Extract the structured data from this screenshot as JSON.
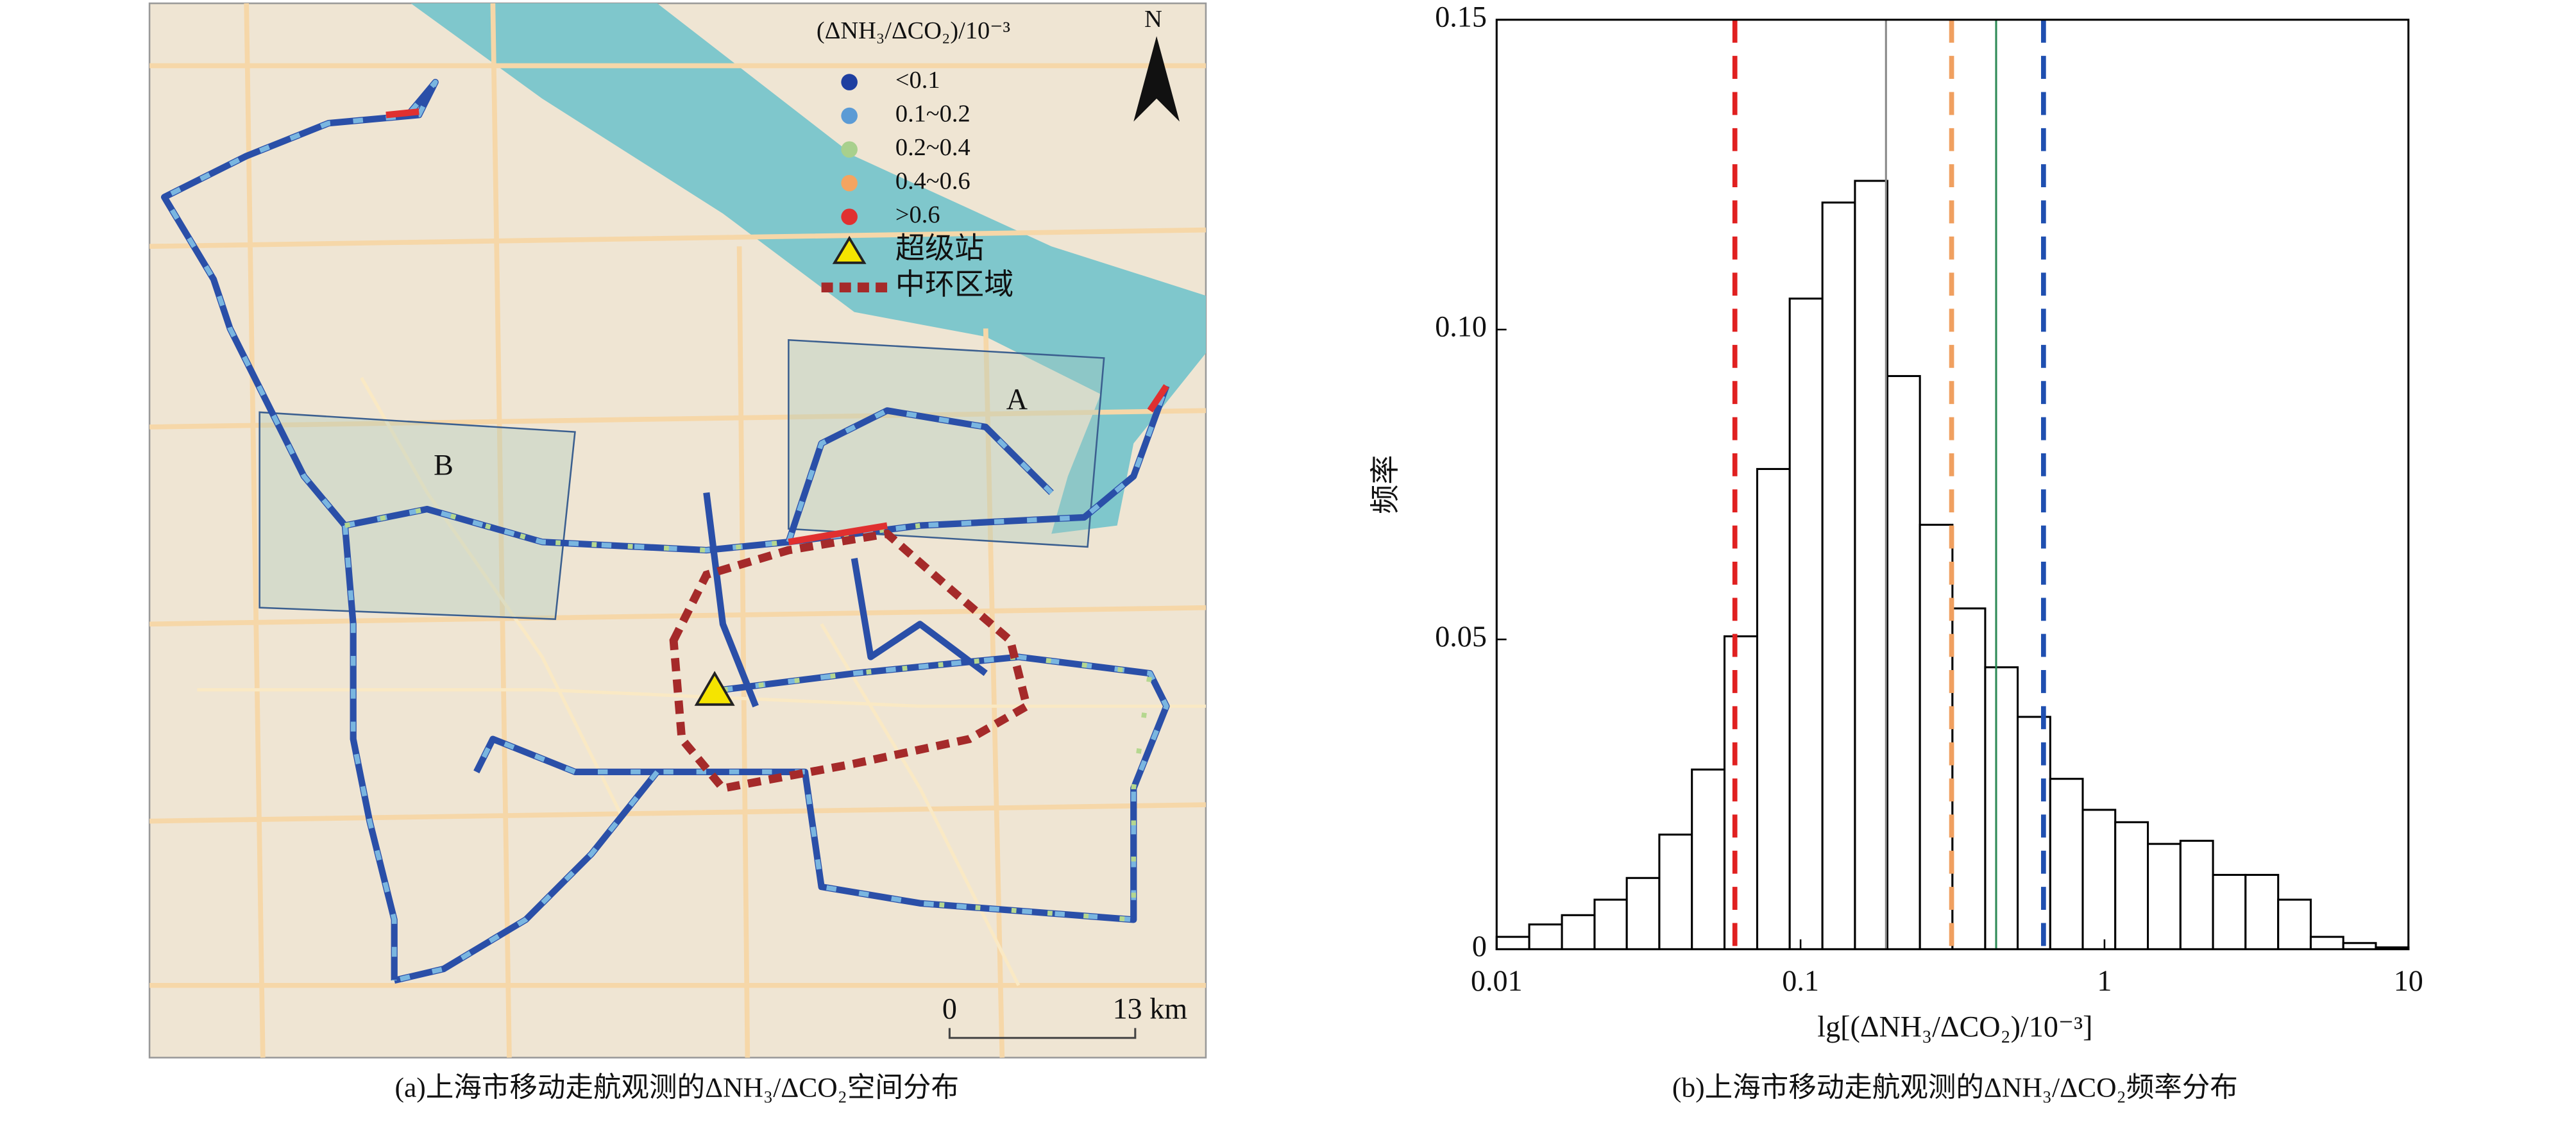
{
  "map": {
    "legend_title": "(ΔNH₃/ΔCO₂)/10⁻³",
    "legend": [
      {
        "label": "<0.1",
        "color": "#1f3fa0"
      },
      {
        "label": "0.1~0.2",
        "color": "#5b9bd5"
      },
      {
        "label": "0.2~0.4",
        "color": "#a8d08d"
      },
      {
        "label": "0.4~0.6",
        "color": "#f4a460"
      },
      {
        "label": ">0.6",
        "color": "#e03030"
      }
    ],
    "station_label": "超级站",
    "ring_label": "中环区域",
    "north": "N",
    "box_a": "A",
    "box_b": "B",
    "scale_start": "0",
    "scale_end": "13 km",
    "caption": "(a)上海市移动走航观测的ΔNH₃/ΔCO₂空间分布"
  },
  "chart_data": {
    "type": "histogram",
    "caption": "(b)上海市移动走航观测的ΔNH₃/ΔCO₂频率分布",
    "x_label": "lg[(ΔNH₃/ΔCO₂)/10⁻³]",
    "y_label": "频率",
    "log_x": true,
    "bins": [
      0.01,
      0.0128,
      0.0164,
      0.021,
      0.0268,
      0.0343,
      0.0439,
      0.0562,
      0.072,
      0.0921,
      0.118,
      0.151,
      0.193,
      0.247,
      0.316,
      0.405,
      0.518,
      0.663,
      0.848,
      1.085,
      1.389,
      1.778,
      2.275,
      2.911,
      3.728,
      4.771,
      6.105,
      7.813,
      10
    ],
    "values": [
      0.002,
      0.004,
      0.0055,
      0.008,
      0.0115,
      0.0185,
      0.029,
      0.0505,
      0.0775,
      0.105,
      0.1205,
      0.124,
      0.0925,
      0.0685,
      0.055,
      0.0455,
      0.0375,
      0.0275,
      0.0225,
      0.0205,
      0.017,
      0.0175,
      0.012,
      0.012,
      0.008,
      0.002,
      0.001,
      0.0003
    ],
    "color": "#ffffff",
    "edge_color": "#000000",
    "xlim": [
      0.01,
      10
    ],
    "xticks": [
      0.01,
      0.1,
      1,
      10
    ],
    "ylim": [
      0,
      0.15
    ],
    "yticks": [
      0,
      0.05,
      {
        "value": 0.1,
        "label": "0.10"
      },
      0.15
    ],
    "vlines": [
      {
        "x": 0.0608,
        "color": "#e02020",
        "dashed": true
      },
      {
        "x": 0.191,
        "color": "#888888",
        "dashed": false
      },
      {
        "x": 0.314,
        "color": "#f0a060",
        "dashed": true
      },
      {
        "x": 0.44,
        "color": "#2e8b57",
        "dashed": false
      },
      {
        "x": 0.63,
        "color": "#1f4fb0",
        "dashed": true
      }
    ]
  }
}
